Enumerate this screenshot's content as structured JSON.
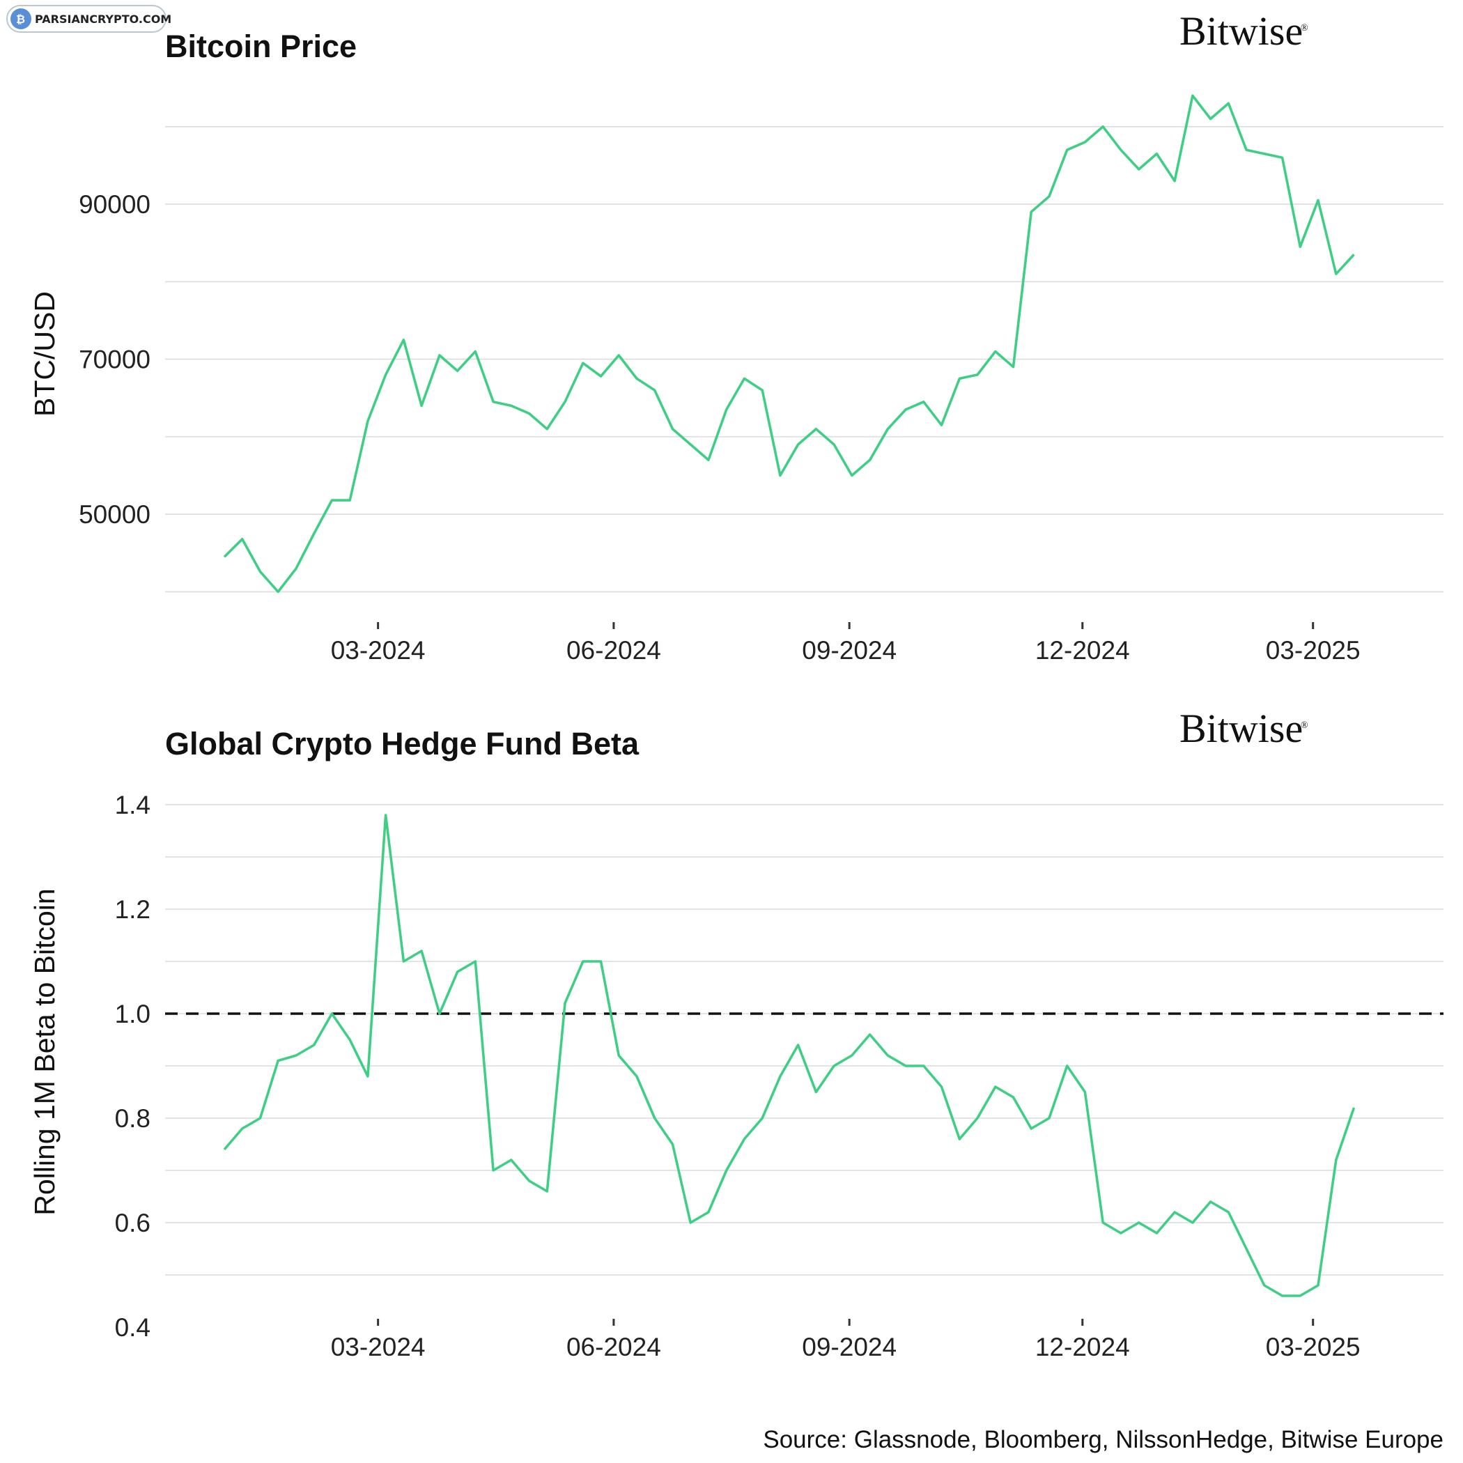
{
  "watermark": {
    "text": "PARSIANCRYPTO.COM",
    "icon": "coin-logo-icon"
  },
  "brand": {
    "name": "Bitwise",
    "mark": "®"
  },
  "source": "Source: Glassnode, Bloomberg, NilssonHedge, Bitwise Europe",
  "colors": {
    "line": "#3ecf85",
    "grid": "#dcdcdc",
    "reference": "#111111"
  },
  "chart_data": [
    {
      "type": "line",
      "title": "Bitcoin Price",
      "ylabel": "BTC/USD",
      "xlabel": "",
      "x_ticks": [
        "03-2024",
        "06-2024",
        "09-2024",
        "12-2024",
        "03-2025"
      ],
      "y_ticks": [
        "50000",
        "70000",
        "90000"
      ],
      "ylim": [
        39500,
        106000
      ],
      "grid": true,
      "series": [
        {
          "x": [
            "2024-01-01",
            "2024-01-08",
            "2024-01-15",
            "2024-01-22",
            "2024-01-29",
            "2024-02-05",
            "2024-02-12",
            "2024-02-19",
            "2024-02-26",
            "2024-03-04",
            "2024-03-11",
            "2024-03-18",
            "2024-03-25",
            "2024-04-01",
            "2024-04-08",
            "2024-04-15",
            "2024-04-22",
            "2024-04-29",
            "2024-05-06",
            "2024-05-13",
            "2024-05-20",
            "2024-05-27",
            "2024-06-03",
            "2024-06-10",
            "2024-06-17",
            "2024-06-24",
            "2024-07-01",
            "2024-07-08",
            "2024-07-15",
            "2024-07-22",
            "2024-07-29",
            "2024-08-05",
            "2024-08-12",
            "2024-08-19",
            "2024-08-26",
            "2024-09-02",
            "2024-09-09",
            "2024-09-16",
            "2024-09-23",
            "2024-09-30",
            "2024-10-07",
            "2024-10-14",
            "2024-10-21",
            "2024-10-28",
            "2024-11-04",
            "2024-11-11",
            "2024-11-18",
            "2024-11-25",
            "2024-12-02",
            "2024-12-09",
            "2024-12-16",
            "2024-12-23",
            "2024-12-30",
            "2025-01-06",
            "2025-01-13",
            "2025-01-20",
            "2025-01-27",
            "2025-02-03",
            "2025-02-10",
            "2025-02-17",
            "2025-02-24",
            "2025-03-03",
            "2025-03-10",
            "2025-03-17"
          ],
          "values": [
            44500,
            46800,
            42600,
            40000,
            43000,
            47500,
            51800,
            51800,
            62000,
            68000,
            72500,
            64000,
            70500,
            68500,
            71000,
            64500,
            64000,
            63000,
            61000,
            64500,
            69500,
            67800,
            70500,
            67500,
            66000,
            61000,
            59000,
            57000,
            63500,
            67500,
            66000,
            55000,
            59000,
            61000,
            59000,
            55000,
            57000,
            61000,
            63500,
            64500,
            61500,
            67500,
            68000,
            71000,
            69000,
            89000,
            91000,
            97000,
            98000,
            100000,
            97000,
            94500,
            96500,
            93000,
            104000,
            101000,
            103000,
            97000,
            96500,
            96000,
            84500,
            90500,
            81000,
            83500
          ]
        }
      ]
    },
    {
      "type": "line",
      "title": "Global Crypto Hedge Fund Beta",
      "ylabel": "Rolling 1M Beta to Bitcoin",
      "xlabel": "",
      "x_ticks": [
        "03-2024",
        "06-2024",
        "09-2024",
        "12-2024",
        "03-2025"
      ],
      "y_ticks": [
        "0.4",
        "0.6",
        "0.8",
        "1.0",
        "1.2",
        "1.4"
      ],
      "ylim": [
        0.4,
        1.42
      ],
      "grid": true,
      "reference_line": {
        "y": 1.0,
        "style": "dashed"
      },
      "series": [
        {
          "x": [
            "2024-01-01",
            "2024-01-08",
            "2024-01-15",
            "2024-01-22",
            "2024-01-29",
            "2024-02-05",
            "2024-02-12",
            "2024-02-19",
            "2024-02-26",
            "2024-03-04",
            "2024-03-11",
            "2024-03-18",
            "2024-03-25",
            "2024-04-01",
            "2024-04-08",
            "2024-04-15",
            "2024-04-22",
            "2024-04-29",
            "2024-05-06",
            "2024-05-13",
            "2024-05-20",
            "2024-05-27",
            "2024-06-03",
            "2024-06-10",
            "2024-06-17",
            "2024-06-24",
            "2024-07-01",
            "2024-07-08",
            "2024-07-15",
            "2024-07-22",
            "2024-07-29",
            "2024-08-05",
            "2024-08-12",
            "2024-08-19",
            "2024-08-26",
            "2024-09-02",
            "2024-09-09",
            "2024-09-16",
            "2024-09-23",
            "2024-09-30",
            "2024-10-07",
            "2024-10-14",
            "2024-10-21",
            "2024-10-28",
            "2024-11-04",
            "2024-11-11",
            "2024-11-18",
            "2024-11-25",
            "2024-12-02",
            "2024-12-09",
            "2024-12-16",
            "2024-12-23",
            "2024-12-30",
            "2025-01-06",
            "2025-01-13",
            "2025-01-20",
            "2025-01-27",
            "2025-02-03",
            "2025-02-10",
            "2025-02-17",
            "2025-02-24",
            "2025-03-03",
            "2025-03-10",
            "2025-03-17"
          ],
          "values": [
            0.74,
            0.78,
            0.8,
            0.91,
            0.92,
            0.94,
            1.0,
            0.95,
            0.88,
            1.38,
            1.1,
            1.12,
            1.0,
            1.08,
            1.1,
            0.7,
            0.72,
            0.68,
            0.66,
            1.02,
            1.1,
            1.1,
            0.92,
            0.88,
            0.8,
            0.75,
            0.6,
            0.62,
            0.7,
            0.76,
            0.8,
            0.88,
            0.94,
            0.85,
            0.9,
            0.92,
            0.96,
            0.92,
            0.9,
            0.9,
            0.86,
            0.76,
            0.8,
            0.86,
            0.84,
            0.78,
            0.8,
            0.9,
            0.85,
            0.6,
            0.58,
            0.6,
            0.58,
            0.62,
            0.6,
            0.64,
            0.62,
            0.55,
            0.48,
            0.46,
            0.46,
            0.48,
            0.72,
            0.82
          ]
        }
      ]
    }
  ]
}
